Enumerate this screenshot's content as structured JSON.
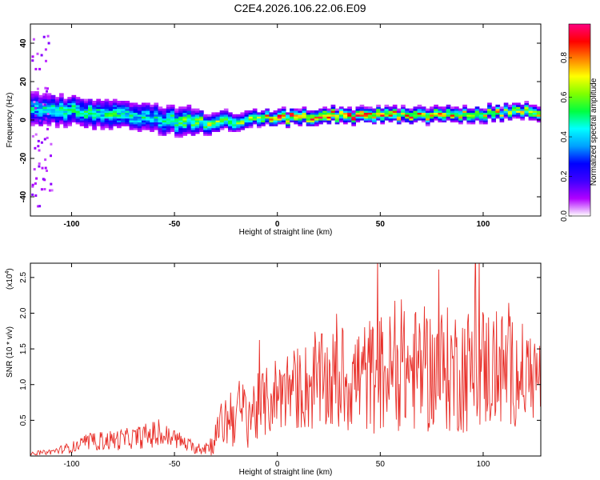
{
  "title": "C2E4.2026.106.22.06.E09",
  "chart_data": [
    {
      "type": "heatmap",
      "id": "spectrogram",
      "xlabel": "Height of straight line (km)",
      "ylabel": "Frequency (Hz)",
      "xlim": [
        -120,
        128
      ],
      "ylim": [
        -50,
        50
      ],
      "x_ticks": [
        -100,
        -50,
        0,
        50,
        100
      ],
      "y_ticks": [
        -40,
        -20,
        0,
        20,
        40
      ],
      "colorbar": {
        "label": "Normalized spectral amplitude",
        "range": [
          0,
          0.97
        ],
        "ticks": [
          0.0,
          0.2,
          0.4,
          0.6,
          0.8
        ],
        "tick_labels": [
          "0.0",
          "0.2",
          "0.4",
          "0.6",
          "0.8"
        ],
        "colormap": [
          "#ffffff",
          "#b000ff",
          "#4000ff",
          "#0000ff",
          "#00a0ff",
          "#00ffff",
          "#00ff40",
          "#80ff00",
          "#ffff00",
          "#ff8000",
          "#ff0000",
          "#ff0080"
        ]
      },
      "ridge": {
        "description_points_x": [
          -120,
          -100,
          -80,
          -60,
          -45,
          -35,
          -25,
          -10,
          0,
          25,
          50,
          75,
          100,
          128
        ],
        "center_freq_hz": [
          5,
          4,
          2,
          0,
          -1,
          -2,
          -1,
          0,
          1,
          2,
          2,
          2,
          3,
          4
        ],
        "half_width_hz": [
          7,
          6,
          6,
          6,
          6,
          4,
          4,
          3,
          3,
          3,
          3,
          3,
          3,
          3
        ],
        "peak_amplitude": [
          0.45,
          0.5,
          0.5,
          0.45,
          0.6,
          0.65,
          0.55,
          0.7,
          0.85,
          0.85,
          0.8,
          0.75,
          0.7,
          0.7
        ]
      }
    },
    {
      "type": "line",
      "id": "snr",
      "xlabel": "Height of straight line (km)",
      "ylabel": "SNR (10 * v/v)",
      "multiplier_label": "(x10",
      "multiplier_exp": "4",
      "multiplier_close": ")",
      "xlim": [
        -120,
        128
      ],
      "ylim": [
        0,
        2.7
      ],
      "x_ticks": [
        -100,
        -50,
        0,
        50,
        100
      ],
      "y_ticks": [
        0.5,
        1.0,
        1.5,
        2.0,
        2.5
      ],
      "y_tick_labels": [
        "0.5",
        "1.0",
        "1.5",
        "2.0",
        "2.5"
      ],
      "color": "#e8302a",
      "series": [
        {
          "name": "SNR",
          "x": [
            -120,
            -110,
            -100,
            -90,
            -80,
            -70,
            -60,
            -50,
            -40,
            -32,
            -28,
            -25,
            -22,
            -15,
            -10,
            -5,
            0,
            10,
            20,
            30,
            40,
            50,
            60,
            70,
            80,
            90,
            100,
            110,
            120,
            128
          ],
          "mean": [
            0.03,
            0.06,
            0.12,
            0.2,
            0.22,
            0.25,
            0.3,
            0.25,
            0.1,
            0.15,
            0.4,
            0.5,
            0.6,
            0.6,
            0.65,
            0.75,
            0.9,
            0.95,
            1.0,
            1.05,
            1.1,
            1.15,
            1.2,
            1.2,
            1.2,
            1.2,
            1.25,
            1.2,
            1.15,
            1.1
          ],
          "spread": [
            0.02,
            0.04,
            0.08,
            0.12,
            0.15,
            0.15,
            0.2,
            0.15,
            0.07,
            0.15,
            0.3,
            0.4,
            0.5,
            0.5,
            0.5,
            0.5,
            0.55,
            0.6,
            0.7,
            0.75,
            0.8,
            0.85,
            0.85,
            0.9,
            0.9,
            0.9,
            0.9,
            0.85,
            0.7,
            0.6
          ]
        }
      ]
    }
  ]
}
